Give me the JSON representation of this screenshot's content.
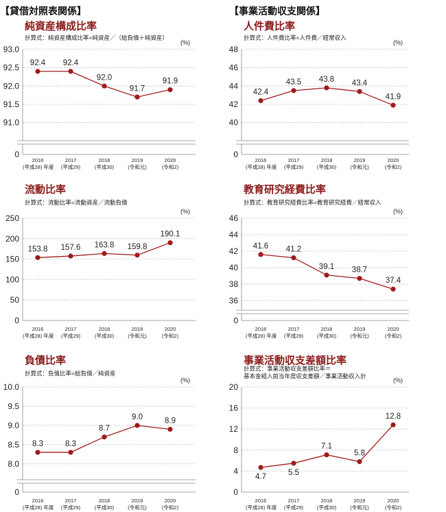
{
  "sections": {
    "left": "【貸借対照表関係】",
    "right": "【事業活動収支関係】"
  },
  "x_labels": {
    "years": [
      "2016",
      "2017",
      "2018",
      "2019",
      "2020"
    ],
    "eras": [
      "(平成28) 年度",
      "(平成29)",
      "(平成30)",
      "(令和元)",
      "(令和2)"
    ]
  },
  "chart_data": [
    {
      "id": "c1",
      "type": "line",
      "title": "純資産構成比率",
      "formula": [
        "計算式：純資産構成比率=純資産／（総負債＋純資産）"
      ],
      "unit": "(%)",
      "yticks_upper": [
        "93.0",
        "92.5",
        "92.0",
        "91.5",
        "91.0"
      ],
      "ytick_zero": "0",
      "ylim": [
        90.75,
        93.0
      ],
      "axis_break": true,
      "categories": [
        "2016",
        "2017",
        "2018",
        "2019",
        "2020"
      ],
      "values": [
        92.4,
        92.4,
        92.0,
        91.7,
        91.9
      ],
      "labels": [
        "92.4",
        "92.4",
        "92.0",
        "91.7",
        "91.9"
      ],
      "label_pos": [
        "above",
        "above",
        "above",
        "above",
        "above"
      ],
      "color": "#a11a1a"
    },
    {
      "id": "c2",
      "type": "line",
      "title": "人件費比率",
      "formula": [
        "計算式：人件費比率=人件費／経常収入"
      ],
      "unit": "(%)",
      "yticks_upper": [
        "48",
        "46",
        "44",
        "42",
        "40"
      ],
      "ytick_zero": "0",
      "ylim": [
        39,
        48
      ],
      "axis_break": true,
      "categories": [
        "2016",
        "2017",
        "2018",
        "2019",
        "2020"
      ],
      "values": [
        42.4,
        43.5,
        43.8,
        43.4,
        41.9
      ],
      "labels": [
        "42.4",
        "43.5",
        "43.8",
        "43.4",
        "41.9"
      ],
      "label_pos": [
        "above",
        "above",
        "above",
        "above",
        "above"
      ],
      "color": "#a11a1a"
    },
    {
      "id": "c3",
      "type": "line",
      "title": "流動比率",
      "formula": [
        "計算式：流動比率=流動資産／流動負債"
      ],
      "unit": "(%)",
      "yticks": [
        "250",
        "200",
        "150",
        "100",
        "50",
        "0"
      ],
      "ylim": [
        0,
        250
      ],
      "axis_break": false,
      "categories": [
        "2016",
        "2017",
        "2018",
        "2019",
        "2020"
      ],
      "values": [
        153.8,
        157.6,
        163.8,
        159.8,
        190.1
      ],
      "labels": [
        "153.8",
        "157.6",
        "163.8",
        "159.8",
        "190.1"
      ],
      "label_pos": [
        "above",
        "above",
        "above",
        "above",
        "above"
      ],
      "color": "#a11a1a"
    },
    {
      "id": "c4",
      "type": "line",
      "title": "教育研究経費比率",
      "formula": [
        "計算式：教育研究経費比率=教育研究経費／経常収入"
      ],
      "unit": "(%)",
      "yticks_upper": [
        "46",
        "44",
        "42",
        "40",
        "38",
        "36"
      ],
      "ytick_zero": "0",
      "ylim": [
        35.5,
        46
      ],
      "axis_break": true,
      "categories": [
        "2016",
        "2017",
        "2018",
        "2019",
        "2020"
      ],
      "values": [
        41.6,
        41.2,
        39.1,
        38.7,
        37.4
      ],
      "labels": [
        "41.6",
        "41.2",
        "39.1",
        "38.7",
        "37.4"
      ],
      "label_pos": [
        "above",
        "above",
        "above",
        "above",
        "above"
      ],
      "color": "#a11a1a"
    },
    {
      "id": "c5",
      "type": "line",
      "title": "負債比率",
      "formula": [
        "計算式：負債比率=総負債／純資産"
      ],
      "unit": "(%)",
      "yticks_upper": [
        "10.0",
        "9.5",
        "9.0",
        "8.5",
        "8.0"
      ],
      "ytick_zero": "0",
      "ylim": [
        7.8,
        10.0
      ],
      "axis_break": true,
      "categories": [
        "2016",
        "2017",
        "2018",
        "2019",
        "2020"
      ],
      "values": [
        8.3,
        8.3,
        8.7,
        9.0,
        8.9
      ],
      "labels": [
        "8.3",
        "8.3",
        "8.7",
        "9.0",
        "8.9"
      ],
      "label_pos": [
        "above",
        "above",
        "above",
        "above",
        "above"
      ],
      "color": "#a11a1a"
    },
    {
      "id": "c6",
      "type": "line",
      "title": "事業活動収支差額比率",
      "formula": [
        "計算式：事業活動収支差額比率＝",
        "基本金組入前当年度収支差額／事業活動収入計"
      ],
      "unit": "(%)",
      "yticks": [
        "20",
        "16",
        "12",
        "8",
        "4",
        "0"
      ],
      "ylim": [
        0,
        20
      ],
      "axis_break": false,
      "categories": [
        "2016",
        "2017",
        "2018",
        "2019",
        "2020"
      ],
      "values": [
        4.7,
        5.5,
        7.1,
        5.8,
        12.8
      ],
      "labels": [
        "4.7",
        "5.5",
        "7.1",
        "5.8",
        "12.8"
      ],
      "label_pos": [
        "below",
        "below",
        "above",
        "above",
        "above"
      ],
      "color": "#a11a1a"
    }
  ]
}
